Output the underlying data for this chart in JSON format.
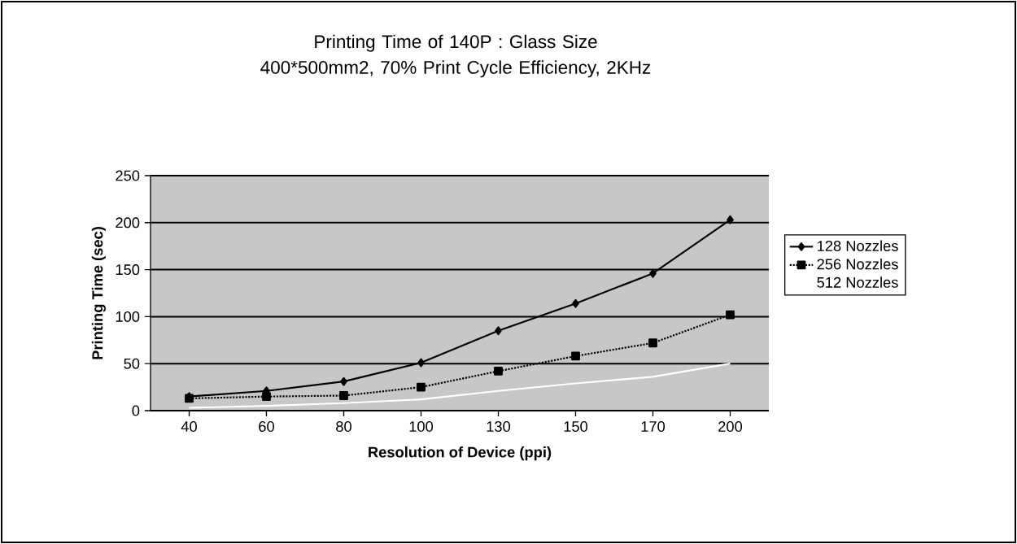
{
  "chart_data": {
    "type": "line",
    "title": "Printing Time of 140P : Glass Size 400*500mm2, 70% Print Cycle Efficiency, 2KHz",
    "xlabel": "Resolution of Device (ppi)",
    "ylabel": "Printing Time (sec)",
    "categories": [
      "40",
      "60",
      "80",
      "100",
      "130",
      "150",
      "170",
      "200"
    ],
    "series": [
      {
        "name": "128 Nozzles",
        "color": "#000000",
        "marker": "diamond",
        "line_style": "solid",
        "values": [
          15,
          21,
          31,
          51,
          85,
          114,
          146,
          203
        ]
      },
      {
        "name": "256 Nozzles",
        "color": "#000000",
        "marker": "square",
        "line_style": "dotted",
        "values": [
          13,
          15,
          16,
          25,
          42,
          58,
          72,
          102
        ]
      },
      {
        "name": "512 Nozzles",
        "color": "#ffffff",
        "marker": "none",
        "line_style": "solid",
        "values": [
          3,
          5,
          8,
          12,
          21,
          29,
          36,
          50
        ]
      }
    ],
    "ylim": [
      0,
      250
    ],
    "yticks": [
      0,
      50,
      100,
      150,
      200,
      250
    ],
    "grid": "y",
    "legend": "right"
  }
}
